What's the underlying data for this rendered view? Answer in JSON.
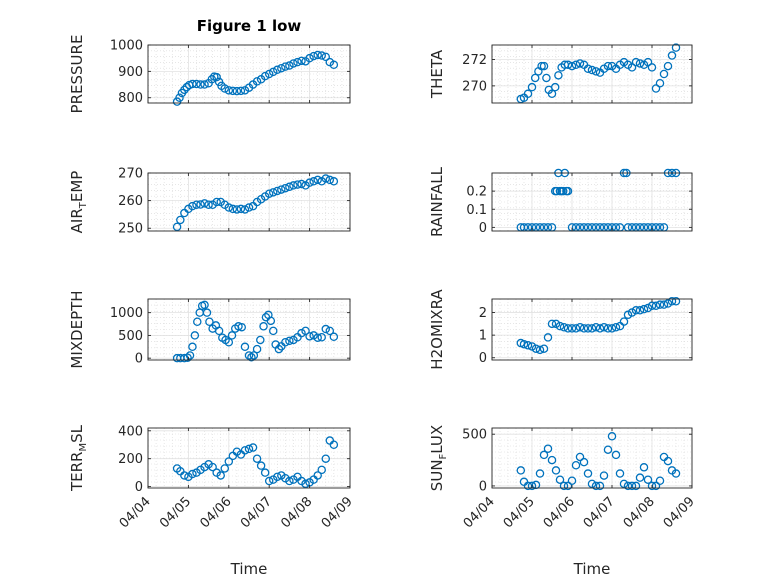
{
  "figure": {
    "title": "Figure 1 low",
    "marker_color": "#0072bd",
    "axis_color": "#262626",
    "grid": true,
    "minor_grid": true
  },
  "chart_data": [
    {
      "type": "scatter",
      "id": "pressure",
      "ylabel": "PRESSURE",
      "xlabel": "",
      "ylim": [
        780,
        1000
      ],
      "yticks": [
        800,
        900,
        1000
      ],
      "xlim": [
        0,
        5
      ],
      "x": [
        0.72,
        0.78,
        0.84,
        0.9,
        0.96,
        1.02,
        1.1,
        1.2,
        1.3,
        1.4,
        1.5,
        1.58,
        1.64,
        1.7,
        1.76,
        1.82,
        1.9,
        2.0,
        2.1,
        2.2,
        2.3,
        2.4,
        2.5,
        2.6,
        2.7,
        2.8,
        2.9,
        3.0,
        3.1,
        3.2,
        3.3,
        3.4,
        3.5,
        3.6,
        3.7,
        3.8,
        3.9,
        4.0,
        4.1,
        4.2,
        4.3,
        4.4,
        4.5,
        4.6
      ],
      "y": [
        785,
        800,
        818,
        830,
        840,
        848,
        852,
        852,
        850,
        850,
        855,
        870,
        880,
        878,
        860,
        845,
        835,
        828,
        826,
        825,
        826,
        828,
        838,
        850,
        862,
        870,
        882,
        890,
        898,
        906,
        912,
        918,
        922,
        930,
        935,
        940,
        938,
        950,
        958,
        962,
        960,
        955,
        935,
        925
      ],
      "date_labels": [
        "04/04",
        "04/05",
        "04/06",
        "04/07",
        "04/08",
        "04/09"
      ]
    },
    {
      "type": "scatter",
      "id": "theta",
      "ylabel": "THETA",
      "xlabel": "",
      "ylim": [
        268.7,
        273.1
      ],
      "yticks": [
        270,
        272
      ],
      "xlim": [
        0,
        5
      ],
      "x": [
        0.72,
        0.8,
        0.9,
        1.0,
        1.08,
        1.16,
        1.24,
        1.3,
        1.36,
        1.42,
        1.5,
        1.58,
        1.66,
        1.74,
        1.82,
        1.9,
        2.0,
        2.1,
        2.2,
        2.3,
        2.4,
        2.5,
        2.6,
        2.7,
        2.8,
        2.9,
        3.0,
        3.1,
        3.2,
        3.3,
        3.4,
        3.5,
        3.6,
        3.7,
        3.8,
        3.9,
        4.0,
        4.1,
        4.2,
        4.3,
        4.4,
        4.5,
        4.6
      ],
      "y": [
        269.0,
        269.1,
        269.4,
        269.9,
        270.6,
        271.1,
        271.5,
        271.5,
        270.6,
        269.7,
        269.4,
        269.9,
        270.8,
        271.4,
        271.6,
        271.6,
        271.5,
        271.6,
        271.7,
        271.6,
        271.3,
        271.2,
        271.1,
        271.0,
        271.3,
        271.5,
        271.5,
        271.3,
        271.6,
        271.8,
        271.6,
        271.4,
        271.8,
        271.7,
        271.6,
        271.8,
        271.4,
        269.8,
        270.2,
        270.9,
        271.5,
        272.3,
        272.9
      ],
      "date_labels": [
        "04/04",
        "04/05",
        "04/06",
        "04/07",
        "04/08",
        "04/09"
      ]
    },
    {
      "type": "scatter",
      "id": "air_temp",
      "ylabel": "AIR_TEMP",
      "ylabel_main": "AIR",
      "ylabel_sub": "T",
      "ylabel_tail": "EMP",
      "xlabel": "",
      "ylim": [
        249,
        270
      ],
      "yticks": [
        250,
        260,
        270
      ],
      "xlim": [
        0,
        5
      ],
      "x": [
        0.72,
        0.8,
        0.9,
        1.0,
        1.1,
        1.2,
        1.3,
        1.4,
        1.5,
        1.6,
        1.7,
        1.8,
        1.9,
        2.0,
        2.1,
        2.2,
        2.3,
        2.4,
        2.5,
        2.6,
        2.7,
        2.8,
        2.9,
        3.0,
        3.1,
        3.2,
        3.3,
        3.4,
        3.5,
        3.6,
        3.7,
        3.8,
        3.9,
        4.0,
        4.1,
        4.2,
        4.3,
        4.4,
        4.5,
        4.6
      ],
      "y": [
        250.5,
        253,
        255.5,
        257,
        258,
        258.5,
        258.6,
        259,
        258.5,
        258.5,
        259.5,
        259.5,
        258.5,
        257.5,
        257,
        256.8,
        257,
        256.8,
        257.5,
        258,
        259.5,
        260.5,
        261.5,
        262.5,
        263,
        263.5,
        264,
        264.5,
        265,
        265.5,
        265.8,
        266,
        265.5,
        266.5,
        267,
        267.5,
        267,
        268,
        267.5,
        267
      ],
      "date_labels": [
        "04/04",
        "04/05",
        "04/06",
        "04/07",
        "04/08",
        "04/09"
      ]
    },
    {
      "type": "scatter",
      "id": "rainfall",
      "ylabel": "RAINFALL",
      "xlabel": "",
      "ylim": [
        -0.02,
        0.3
      ],
      "yticks": [
        0,
        0.1,
        0.2
      ],
      "xlim": [
        0,
        5
      ],
      "x": [
        0.72,
        0.8,
        0.9,
        1.0,
        1.1,
        1.2,
        1.3,
        1.4,
        1.5,
        1.58,
        1.62,
        1.66,
        1.7,
        1.74,
        1.78,
        1.82,
        1.86,
        1.9,
        2.0,
        2.1,
        2.2,
        2.3,
        2.4,
        2.5,
        2.6,
        2.7,
        2.8,
        2.9,
        3.0,
        3.1,
        3.2,
        3.3,
        3.36,
        3.4,
        3.5,
        3.6,
        3.7,
        3.8,
        3.9,
        4.0,
        4.1,
        4.2,
        4.3,
        4.4,
        4.5,
        4.6
      ],
      "y": [
        0,
        0,
        0,
        0,
        0,
        0,
        0,
        0,
        0,
        0.2,
        0.2,
        0.3,
        0.2,
        0.2,
        0.2,
        0.3,
        0.2,
        0.2,
        0,
        0,
        0,
        0,
        0,
        0,
        0,
        0,
        0,
        0,
        0,
        0,
        0,
        0.3,
        0.3,
        0,
        0,
        0,
        0,
        0,
        0,
        0,
        0,
        0,
        0,
        0.3,
        0.3,
        0.3
      ],
      "date_labels": [
        "04/04",
        "04/05",
        "04/06",
        "04/07",
        "04/08",
        "04/09"
      ]
    },
    {
      "type": "scatter",
      "id": "mixdepth",
      "ylabel": "MIXDEPTH",
      "xlabel": "",
      "ylim": [
        -40,
        1300
      ],
      "yticks": [
        0,
        500,
        1000
      ],
      "xlim": [
        0,
        5
      ],
      "x": [
        0.72,
        0.8,
        0.9,
        0.98,
        1.04,
        1.1,
        1.16,
        1.22,
        1.28,
        1.34,
        1.4,
        1.46,
        1.52,
        1.6,
        1.68,
        1.76,
        1.84,
        1.92,
        2.0,
        2.08,
        2.16,
        2.24,
        2.32,
        2.4,
        2.5,
        2.56,
        2.62,
        2.7,
        2.78,
        2.86,
        2.92,
        2.98,
        3.04,
        3.1,
        3.16,
        3.24,
        3.3,
        3.4,
        3.5,
        3.6,
        3.7,
        3.8,
        3.9,
        4.0,
        4.1,
        4.2,
        4.3,
        4.4,
        4.5,
        4.6
      ],
      "y": [
        0,
        0,
        0,
        10,
        60,
        250,
        500,
        800,
        1000,
        1150,
        1170,
        1000,
        800,
        650,
        720,
        600,
        450,
        400,
        350,
        500,
        650,
        700,
        680,
        250,
        60,
        20,
        60,
        200,
        400,
        700,
        900,
        950,
        820,
        600,
        300,
        200,
        260,
        350,
        380,
        400,
        460,
        550,
        600,
        480,
        500,
        450,
        460,
        640,
        600,
        470
      ],
      "date_labels": [
        "04/04",
        "04/05",
        "04/06",
        "04/07",
        "04/08",
        "04/09"
      ]
    },
    {
      "type": "scatter",
      "id": "h2omixra",
      "ylabel": "H2OMIXRA",
      "xlabel": "",
      "ylim": [
        -0.1,
        2.6
      ],
      "yticks": [
        0,
        1,
        2
      ],
      "xlim": [
        0,
        5
      ],
      "x": [
        0.72,
        0.8,
        0.9,
        1.0,
        1.1,
        1.2,
        1.3,
        1.4,
        1.5,
        1.6,
        1.7,
        1.8,
        1.9,
        2.0,
        2.1,
        2.2,
        2.3,
        2.4,
        2.5,
        2.6,
        2.7,
        2.8,
        2.9,
        3.0,
        3.1,
        3.2,
        3.3,
        3.4,
        3.5,
        3.6,
        3.7,
        3.8,
        3.9,
        4.0,
        4.1,
        4.2,
        4.3,
        4.4,
        4.5,
        4.6
      ],
      "y": [
        0.65,
        0.6,
        0.55,
        0.5,
        0.4,
        0.35,
        0.4,
        0.9,
        1.5,
        1.5,
        1.4,
        1.35,
        1.3,
        1.3,
        1.3,
        1.35,
        1.3,
        1.3,
        1.3,
        1.35,
        1.3,
        1.35,
        1.3,
        1.3,
        1.35,
        1.4,
        1.6,
        1.9,
        2.0,
        2.1,
        2.1,
        2.15,
        2.2,
        2.3,
        2.3,
        2.35,
        2.35,
        2.4,
        2.5,
        2.5
      ],
      "date_labels": [
        "04/04",
        "04/05",
        "04/06",
        "04/07",
        "04/08",
        "04/09"
      ]
    },
    {
      "type": "scatter",
      "id": "terr_msl",
      "ylabel": "TERR_MSL",
      "ylabel_main": "TERR",
      "ylabel_sub": "M",
      "ylabel_tail": "SL",
      "xlabel": "Time",
      "ylim": [
        -10,
        420
      ],
      "yticks": [
        0,
        200,
        400
      ],
      "xlim": [
        0,
        5
      ],
      "x": [
        0.72,
        0.8,
        0.9,
        1.0,
        1.1,
        1.2,
        1.3,
        1.4,
        1.5,
        1.6,
        1.7,
        1.8,
        1.9,
        2.0,
        2.1,
        2.2,
        2.3,
        2.4,
        2.5,
        2.6,
        2.7,
        2.8,
        2.9,
        3.0,
        3.1,
        3.2,
        3.3,
        3.4,
        3.5,
        3.6,
        3.7,
        3.8,
        3.9,
        4.0,
        4.1,
        4.2,
        4.3,
        4.4,
        4.5,
        4.6
      ],
      "y": [
        130,
        110,
        80,
        70,
        90,
        100,
        120,
        140,
        160,
        140,
        100,
        80,
        130,
        180,
        220,
        250,
        230,
        260,
        270,
        280,
        200,
        150,
        100,
        40,
        50,
        70,
        80,
        60,
        40,
        50,
        70,
        40,
        20,
        30,
        50,
        80,
        120,
        200,
        330,
        300
      ],
      "date_labels": [
        "04/04",
        "04/05",
        "04/06",
        "04/07",
        "04/08",
        "04/09"
      ]
    },
    {
      "type": "scatter",
      "id": "sun_flux",
      "ylabel": "SUN_FLUX",
      "ylabel_main": "SUN",
      "ylabel_sub": "F",
      "ylabel_tail": "LUX",
      "xlabel": "Time",
      "ylim": [
        -20,
        560
      ],
      "yticks": [
        0,
        500
      ],
      "xlim": [
        0,
        5
      ],
      "x": [
        0.72,
        0.8,
        0.9,
        1.0,
        1.1,
        1.2,
        1.3,
        1.4,
        1.5,
        1.6,
        1.7,
        1.8,
        1.9,
        2.0,
        2.1,
        2.2,
        2.3,
        2.4,
        2.5,
        2.6,
        2.7,
        2.8,
        2.9,
        3.0,
        3.1,
        3.2,
        3.3,
        3.4,
        3.5,
        3.6,
        3.7,
        3.8,
        3.9,
        4.0,
        4.1,
        4.2,
        4.3,
        4.4,
        4.5,
        4.6
      ],
      "y": [
        150,
        40,
        0,
        0,
        10,
        120,
        300,
        360,
        250,
        150,
        60,
        0,
        0,
        50,
        200,
        280,
        230,
        120,
        20,
        0,
        0,
        100,
        350,
        480,
        300,
        120,
        20,
        0,
        0,
        0,
        80,
        180,
        60,
        0,
        0,
        50,
        280,
        240,
        150,
        120
      ],
      "date_labels": [
        "04/04",
        "04/05",
        "04/06",
        "04/07",
        "04/08",
        "04/09"
      ]
    }
  ]
}
